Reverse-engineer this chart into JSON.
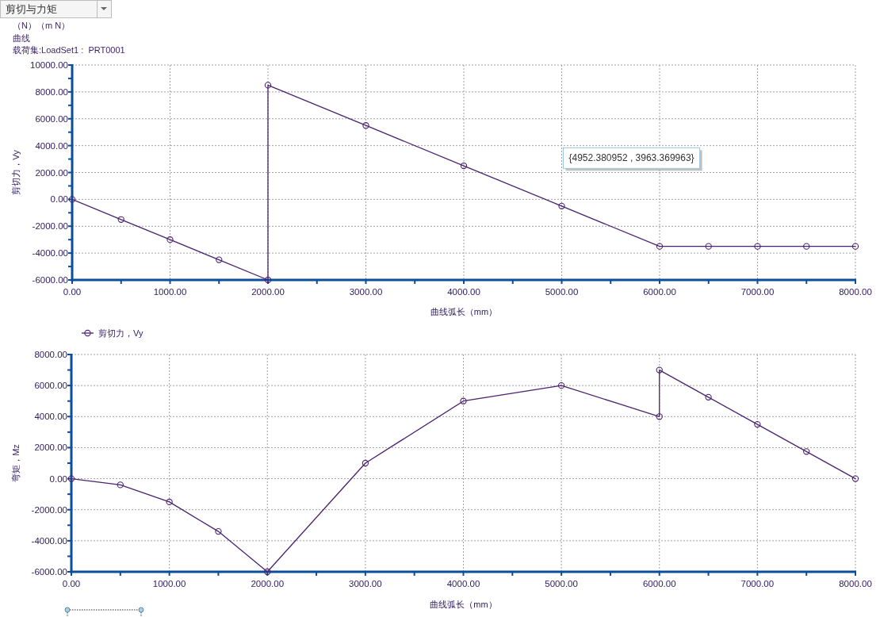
{
  "chart_data": [
    {
      "type": "line",
      "title": "剪切与力矩",
      "annotations": [
        "（N）（m N）",
        "曲线",
        "载荷集:LoadSet1 :  PRT0001",
        "{4952.380952 , 3963.369963}"
      ],
      "xlabel": "曲线弧长（mm）",
      "ylabel": "剪切力，Vy",
      "series": [
        {
          "name": "剪切力，Vy",
          "color": "#4b2270",
          "x": [
            0,
            500,
            1000,
            1500,
            2000,
            2000,
            3000,
            4000,
            5000,
            6000,
            6500,
            7000,
            7500,
            8000
          ],
          "values": [
            0,
            -1500,
            -3000,
            -4500,
            -6000,
            8500,
            5500,
            2500,
            -500,
            -3500,
            -3500,
            -3500,
            -3500,
            -3500
          ]
        }
      ],
      "xlim": [
        0,
        8000
      ],
      "ylim": [
        -6000,
        10000
      ],
      "xticks": [
        {
          "value": 0,
          "label": "0.00"
        },
        {
          "value": 500,
          "label": null
        },
        {
          "value": 1000,
          "label": "1000.00"
        },
        {
          "value": 1500,
          "label": null
        },
        {
          "value": 2000,
          "label": "2000.00"
        },
        {
          "value": 2500,
          "label": null
        },
        {
          "value": 3000,
          "label": "3000.00"
        },
        {
          "value": 3500,
          "label": null
        },
        {
          "value": 4000,
          "label": "4000.00"
        },
        {
          "value": 4500,
          "label": null
        },
        {
          "value": 5000,
          "label": "5000.00"
        },
        {
          "value": 5500,
          "label": null
        },
        {
          "value": 6000,
          "label": "6000.00"
        },
        {
          "value": 6500,
          "label": null
        },
        {
          "value": 7000,
          "label": "7000.00"
        },
        {
          "value": 7500,
          "label": null
        },
        {
          "value": 8000,
          "label": "8000.00"
        }
      ],
      "yticks": [
        {
          "value": -6000,
          "label": "-6000.00"
        },
        {
          "value": -5000,
          "label": null
        },
        {
          "value": -4000,
          "label": "-4000.00"
        },
        {
          "value": -3000,
          "label": null
        },
        {
          "value": -2000,
          "label": "-2000.00"
        },
        {
          "value": -1000,
          "label": null
        },
        {
          "value": 0,
          "label": "0.00"
        },
        {
          "value": 1000,
          "label": null
        },
        {
          "value": 2000,
          "label": "2000.00"
        },
        {
          "value": 3000,
          "label": null
        },
        {
          "value": 4000,
          "label": "4000.00"
        },
        {
          "value": 5000,
          "label": null
        },
        {
          "value": 6000,
          "label": "6000.00"
        },
        {
          "value": 7000,
          "label": null
        },
        {
          "value": 8000,
          "label": "8000.00"
        },
        {
          "value": 9000,
          "label": null
        },
        {
          "value": 10000,
          "label": "10000.00"
        }
      ],
      "grid": true,
      "legend": "bottom",
      "marker": "circle",
      "line_style": "solid"
    },
    {
      "type": "line",
      "xlabel": "曲线弧长（mm）",
      "ylabel": "弯矩，Mz",
      "series": [
        {
          "color": "#4b2270",
          "x": [
            0,
            500,
            1000,
            1500,
            2000,
            3000,
            4000,
            5000,
            6000,
            6000,
            6500,
            7000,
            7500,
            8000
          ],
          "values": [
            0,
            -400,
            -1500,
            -3400,
            -6000,
            1000,
            5000,
            6000,
            4000,
            7000,
            5250,
            3500,
            1750,
            0
          ]
        }
      ],
      "xlim": [
        0,
        8000
      ],
      "ylim": [
        -6000,
        8000
      ],
      "xticks": [
        {
          "value": 0,
          "label": "0.00"
        },
        {
          "value": 500,
          "label": null
        },
        {
          "value": 1000,
          "label": "1000.00"
        },
        {
          "value": 1500,
          "label": null
        },
        {
          "value": 2000,
          "label": "2000.00"
        },
        {
          "value": 2500,
          "label": null
        },
        {
          "value": 3000,
          "label": "3000.00"
        },
        {
          "value": 3500,
          "label": null
        },
        {
          "value": 4000,
          "label": "4000.00"
        },
        {
          "value": 4500,
          "label": null
        },
        {
          "value": 5000,
          "label": "5000.00"
        },
        {
          "value": 5500,
          "label": null
        },
        {
          "value": 6000,
          "label": "6000.00"
        },
        {
          "value": 6500,
          "label": null
        },
        {
          "value": 7000,
          "label": "7000.00"
        },
        {
          "value": 7500,
          "label": null
        },
        {
          "value": 8000,
          "label": "8000.00"
        }
      ],
      "yticks": [
        {
          "value": -6000,
          "label": "-6000.00"
        },
        {
          "value": -5000,
          "label": null
        },
        {
          "value": -4000,
          "label": "-4000.00"
        },
        {
          "value": -3000,
          "label": null
        },
        {
          "value": -2000,
          "label": "-2000.00"
        },
        {
          "value": -1000,
          "label": null
        },
        {
          "value": 0,
          "label": "0.00"
        },
        {
          "value": 1000,
          "label": null
        },
        {
          "value": 2000,
          "label": "2000.00"
        },
        {
          "value": 3000,
          "label": null
        },
        {
          "value": 4000,
          "label": "4000.00"
        },
        {
          "value": 5000,
          "label": null
        },
        {
          "value": 6000,
          "label": "6000.00"
        },
        {
          "value": 7000,
          "label": null
        },
        {
          "value": 8000,
          "label": "8000.00"
        }
      ],
      "grid": true,
      "marker": "circle",
      "line_style": "solid"
    }
  ]
}
